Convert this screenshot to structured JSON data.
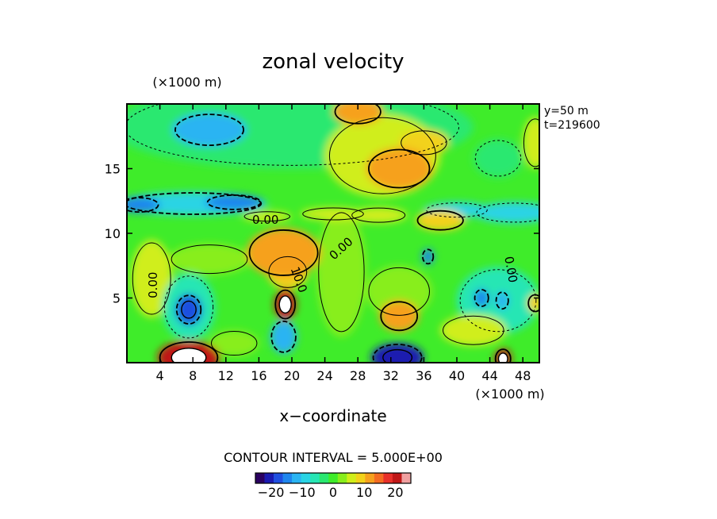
{
  "chart_data": {
    "type": "heatmap",
    "title": "zonal velocity",
    "xlabel": "x−coordinate",
    "x_unit": "(×1000 m)",
    "y_unit": "(×1000 m)",
    "xlim": [
      0,
      50
    ],
    "ylim": [
      0,
      20
    ],
    "x_ticks": [
      4,
      8,
      12,
      16,
      20,
      24,
      28,
      32,
      36,
      40,
      44,
      48
    ],
    "y_ticks": [
      5,
      10,
      15
    ],
    "info": [
      "y=50 m",
      "t=219600"
    ],
    "contour_interval_text": "CONTOUR INTERVAL = 5.000E+00",
    "contour_labels": [
      {
        "text": "0.00",
        "x": 16.8,
        "y": 11.0,
        "rot": 0
      },
      {
        "text": "0.00",
        "x": 26.0,
        "y": 8.8,
        "rot": -42
      },
      {
        "text": "0.00",
        "x": 3.2,
        "y": 6.0,
        "rot": -90
      },
      {
        "text": "10.0",
        "x": 20.8,
        "y": 6.4,
        "rot": 70
      },
      {
        "text": "0.00",
        "x": 46.5,
        "y": 7.2,
        "rot": 80
      }
    ],
    "colorbar": {
      "range": [
        -25,
        25
      ],
      "tick_values": [
        -20,
        -10,
        0,
        10,
        20
      ],
      "tick_labels": [
        "−20",
        "−10",
        "0",
        "10",
        "20"
      ],
      "colors": [
        "#2a0060",
        "#1a1ab0",
        "#1f4fe0",
        "#1f86ee",
        "#2ab4f2",
        "#29d4e4",
        "#27e6b4",
        "#2ae870",
        "#3fec2a",
        "#88ee1c",
        "#d0ee1a",
        "#f2d21a",
        "#f6a11e",
        "#f46c22",
        "#e8302a",
        "#c01818",
        "#f0a0a0"
      ]
    },
    "features": [
      {
        "x": 20,
        "y": 18.2,
        "rx": 22,
        "ry": 3.2,
        "v": -4
      },
      {
        "x": 10,
        "y": 18.0,
        "rx": 4.5,
        "ry": 1.3,
        "v": -13
      },
      {
        "x": 31,
        "y": 16.0,
        "rx": 7,
        "ry": 3.2,
        "v": 6
      },
      {
        "x": 33,
        "y": 15.0,
        "rx": 4,
        "ry": 1.6,
        "v": 11
      },
      {
        "x": 28,
        "y": 19.4,
        "rx": 3,
        "ry": 1.0,
        "v": 12
      },
      {
        "x": 36,
        "y": 17.0,
        "rx": 3,
        "ry": 1.0,
        "v": 8
      },
      {
        "x": 8,
        "y": 12.3,
        "rx": 9,
        "ry": 0.9,
        "v": -10
      },
      {
        "x": 13,
        "y": 12.4,
        "rx": 3.5,
        "ry": 0.6,
        "v": -14
      },
      {
        "x": 1.5,
        "y": 12.2,
        "rx": 2.5,
        "ry": 0.6,
        "v": -14
      },
      {
        "x": 47,
        "y": 11.6,
        "rx": 5,
        "ry": 0.8,
        "v": -9
      },
      {
        "x": 40,
        "y": 11.8,
        "rx": 4,
        "ry": 0.6,
        "v": -8
      },
      {
        "x": 45,
        "y": 15.8,
        "rx": 3,
        "ry": 1.5,
        "v": -3
      },
      {
        "x": 38,
        "y": 11.0,
        "rx": 3,
        "ry": 0.8,
        "v": 10
      },
      {
        "x": 30.5,
        "y": 11.4,
        "rx": 3.5,
        "ry": 0.6,
        "v": 7
      },
      {
        "x": 19,
        "y": 8.5,
        "rx": 4.5,
        "ry": 1.9,
        "v": 11
      },
      {
        "x": 19.5,
        "y": 7.0,
        "rx": 2.5,
        "ry": 1.3,
        "v": 8
      },
      {
        "x": 19.2,
        "y": 4.5,
        "rx": 1.3,
        "ry": 1.2,
        "v": 20
      },
      {
        "x": 7.5,
        "y": 4.3,
        "rx": 3.2,
        "ry": 2.6,
        "v": -6
      },
      {
        "x": 7.5,
        "y": 4.1,
        "rx": 1.6,
        "ry": 1.2,
        "v": -18
      },
      {
        "x": 19,
        "y": 2.0,
        "rx": 1.6,
        "ry": 1.3,
        "v": -13
      },
      {
        "x": 7.5,
        "y": 0.4,
        "rx": 3.8,
        "ry": 1.3,
        "v": 22
      },
      {
        "x": 32.8,
        "y": 0.4,
        "rx": 3.2,
        "ry": 1.1,
        "v": -20
      },
      {
        "x": 33,
        "y": 3.6,
        "rx": 2.4,
        "ry": 1.2,
        "v": 11
      },
      {
        "x": 33,
        "y": 5.5,
        "rx": 4,
        "ry": 2.0,
        "v": 4
      },
      {
        "x": 45,
        "y": 4.8,
        "rx": 5,
        "ry": 2.6,
        "v": -5
      },
      {
        "x": 43,
        "y": 5.0,
        "rx": 0.9,
        "ry": 0.7,
        "v": -14
      },
      {
        "x": 45.5,
        "y": 4.8,
        "rx": 0.8,
        "ry": 0.7,
        "v": -13
      },
      {
        "x": 36.5,
        "y": 8.2,
        "rx": 0.7,
        "ry": 0.6,
        "v": -14
      },
      {
        "x": 49.5,
        "y": 4.6,
        "rx": 0.9,
        "ry": 0.7,
        "v": 10
      },
      {
        "x": 45.6,
        "y": 0.3,
        "rx": 1.0,
        "ry": 0.8,
        "v": 20
      },
      {
        "x": 3,
        "y": 6.5,
        "rx": 2.5,
        "ry": 3.0,
        "v": 5
      },
      {
        "x": 10,
        "y": 8.0,
        "rx": 5,
        "ry": 1.2,
        "v": 3
      },
      {
        "x": 42,
        "y": 2.5,
        "rx": 4,
        "ry": 1.2,
        "v": 5
      },
      {
        "x": 13,
        "y": 1.5,
        "rx": 3,
        "ry": 1.0,
        "v": 4
      },
      {
        "x": 49.5,
        "y": 17.0,
        "rx": 1.5,
        "ry": 2.0,
        "v": 6
      },
      {
        "x": 26,
        "y": 7.0,
        "rx": 3,
        "ry": 5.0,
        "v": 2
      },
      {
        "x": 25,
        "y": 11.5,
        "rx": 4,
        "ry": 0.5,
        "v": 6
      },
      {
        "x": 17,
        "y": 11.3,
        "rx": 3,
        "ry": 0.4,
        "v": 5
      }
    ]
  }
}
